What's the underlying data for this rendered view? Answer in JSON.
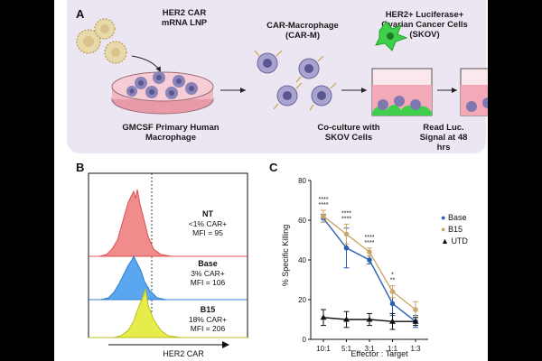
{
  "panel_a": {
    "label": "A",
    "lnp_title_1": "HER2 CAR",
    "lnp_title_2": "mRNA LNP",
    "carm_title_1": "CAR-Macrophage",
    "carm_title_2": "(CAR-M)",
    "skov_title_1": "HER2+ Luciferase+",
    "skov_title_2": "Ovarian Cancer Cells",
    "skov_title_3": "(SKOV)",
    "gmcsf_1": "GMCSF Primary Human",
    "gmcsf_2": "Macrophage",
    "coculture_1": "Co-culture with",
    "coculture_2": "SKOV Cells",
    "read_1": "Read Luc.",
    "read_2": "Signal at 48",
    "read_3": "hrs"
  },
  "panel_b": {
    "label": "B",
    "xlabel": "HER2 CAR",
    "samples": [
      {
        "name": "NT",
        "car": "<1% CAR+",
        "mfi": "MFI = 95",
        "color": "#f08c8c"
      },
      {
        "name": "Base",
        "car": "3% CAR+",
        "mfi": "MFI = 106",
        "color": "#5aa7f0"
      },
      {
        "name": "B15",
        "car": "18% CAR+",
        "mfi": "MFI = 206",
        "color": "#e6ec4a"
      }
    ]
  },
  "panel_c": {
    "label": "C"
  },
  "chart_data": {
    "type": "line",
    "title": "",
    "xlabel": "Effector : Target",
    "ylabel": "% Specific Killing",
    "categories": [
      "10:1",
      "5:1",
      "3:1",
      "1:1",
      "1:3"
    ],
    "ylim": [
      0,
      80
    ],
    "yticks": [
      0,
      20,
      40,
      60,
      80
    ],
    "series": [
      {
        "name": "Base",
        "color": "#2d5fb5",
        "marker": "circle",
        "values": [
          61,
          46,
          40,
          18,
          9
        ],
        "errors": [
          2,
          10,
          2,
          6,
          3
        ]
      },
      {
        "name": "B15",
        "color": "#c9a86a",
        "marker": "circle",
        "values": [
          62,
          53,
          44,
          24,
          15
        ],
        "errors": [
          3,
          5,
          2,
          3,
          4
        ]
      },
      {
        "name": "UTD",
        "color": "#111111",
        "marker": "triangle",
        "values": [
          11,
          10,
          10,
          9,
          9
        ],
        "errors": [
          4,
          4,
          3,
          4,
          2
        ]
      }
    ],
    "annotations": [
      {
        "category": "10:1",
        "lines": [
          "****",
          "****"
        ]
      },
      {
        "category": "5:1",
        "lines": [
          "****",
          "****"
        ]
      },
      {
        "category": "3:1",
        "lines": [
          "****",
          "****"
        ]
      },
      {
        "category": "1:1",
        "lines": [
          "*",
          "**"
        ]
      }
    ]
  }
}
